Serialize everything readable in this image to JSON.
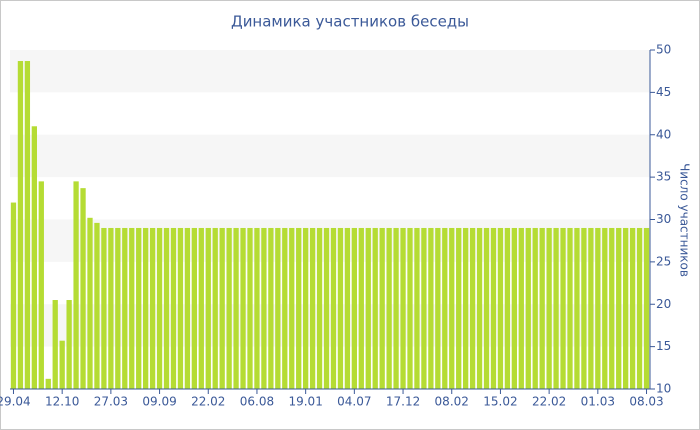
{
  "chart_data": {
    "type": "bar",
    "title": "Динамика участников беседы",
    "y_label": "Число участников",
    "color": "#b5dc34",
    "categories": [
      "29.04",
      null,
      null,
      null,
      null,
      null,
      null,
      "12.10",
      null,
      null,
      null,
      null,
      null,
      null,
      "27.03",
      null,
      null,
      null,
      null,
      null,
      null,
      "09.09",
      null,
      null,
      null,
      null,
      null,
      null,
      "22.02",
      null,
      null,
      null,
      null,
      null,
      null,
      "06.08",
      null,
      null,
      null,
      null,
      null,
      null,
      "19.01",
      null,
      null,
      null,
      null,
      null,
      null,
      "04.07",
      null,
      null,
      null,
      null,
      null,
      null,
      "17.12",
      null,
      null,
      null,
      null,
      null,
      null,
      "08.02",
      null,
      null,
      null,
      null,
      null,
      null,
      "15.02",
      null,
      null,
      null,
      null,
      null,
      null,
      "22.02",
      null,
      null,
      null,
      null,
      null,
      null,
      "01.03",
      null,
      null,
      null,
      null,
      null,
      null,
      "08.03"
    ],
    "values": [
      32,
      48.7,
      48.7,
      41,
      34.5,
      11.2,
      20.5,
      15.7,
      20.5,
      34.5,
      33.7,
      30.2,
      29.6,
      29,
      29,
      29,
      29,
      29,
      29,
      29,
      29,
      29,
      29,
      29,
      29,
      29,
      29,
      29,
      29,
      29,
      29,
      29,
      29,
      29,
      29,
      29,
      29,
      29,
      29,
      29,
      29,
      29,
      29,
      29,
      29,
      29,
      29,
      29,
      29,
      29,
      29,
      29,
      29,
      29,
      29,
      29,
      29,
      29,
      29,
      29,
      29,
      29,
      29,
      29,
      29,
      29,
      29,
      29,
      29,
      29,
      29,
      29,
      29,
      29,
      29,
      29,
      29,
      29,
      29,
      29,
      29,
      29,
      29,
      29,
      29,
      29,
      29,
      29,
      29,
      29,
      29,
      29
    ],
    "ylim": [
      10,
      50
    ],
    "yticks": [
      10,
      15,
      20,
      25,
      30,
      35,
      40,
      45,
      50
    ],
    "grid": true
  }
}
